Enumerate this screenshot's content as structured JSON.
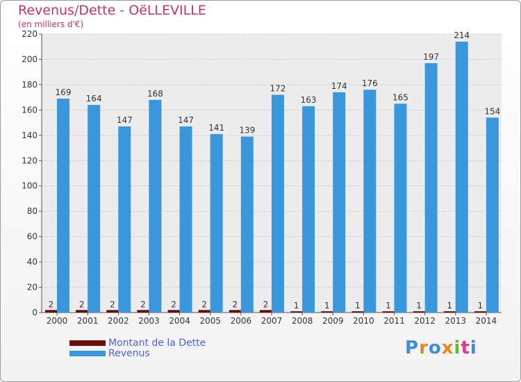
{
  "chart_data": {
    "type": "bar",
    "title": "Revenus/Dette - OëLLEVILLE",
    "subtitle": "(en milliers d'€)",
    "categories": [
      "2000",
      "2001",
      "2002",
      "2003",
      "2004",
      "2005",
      "2006",
      "2007",
      "2008",
      "2009",
      "2010",
      "2011",
      "2012",
      "2013",
      "2014"
    ],
    "series": [
      {
        "name": "Montant de la Dette",
        "color": "#6b0d0d",
        "values": [
          2,
          2,
          2,
          2,
          2,
          2,
          2,
          2,
          1,
          1,
          1,
          1,
          1,
          1,
          1
        ]
      },
      {
        "name": "Revenus",
        "color": "#3a97dc",
        "values": [
          169,
          164,
          147,
          168,
          147,
          141,
          139,
          172,
          163,
          174,
          176,
          165,
          197,
          214,
          154
        ]
      }
    ],
    "ylim": [
      0,
      220
    ],
    "yticks": [
      0,
      20,
      40,
      60,
      80,
      100,
      120,
      140,
      160,
      180,
      200,
      220
    ],
    "grid": true
  },
  "logo": {
    "text": "Proxiti"
  }
}
